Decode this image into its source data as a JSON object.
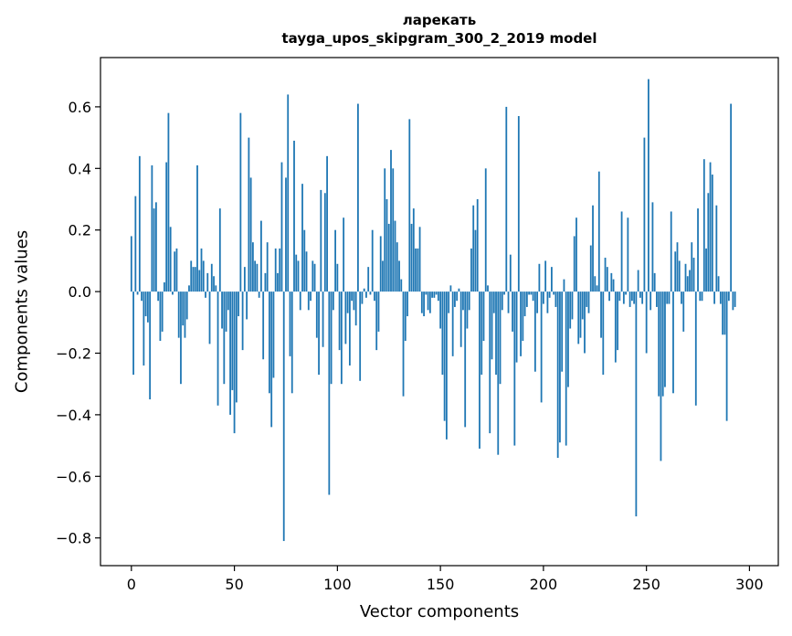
{
  "chart_data": {
    "type": "bar",
    "title_line1": "ларекать",
    "title_line2": "tayga_upos_skipgram_300_2_2019 model",
    "xlabel": "Vector components",
    "ylabel": "Components values",
    "xlim": [
      -15,
      314
    ],
    "ylim": [
      -0.89,
      0.76
    ],
    "xticks": [
      0,
      50,
      100,
      150,
      200,
      250,
      300
    ],
    "xtick_labels": [
      "0",
      "50",
      "100",
      "150",
      "200",
      "250",
      "300"
    ],
    "yticks": [
      -0.8,
      -0.6,
      -0.4,
      -0.2,
      0.0,
      0.2,
      0.4,
      0.6
    ],
    "ytick_labels": [
      "−0.8",
      "−0.6",
      "−0.4",
      "−0.2",
      "0.0",
      "0.2",
      "0.4",
      "0.6"
    ],
    "grid": false,
    "bar_color": "#1f77b4",
    "values": [
      0.18,
      -0.27,
      0.31,
      -0.01,
      0.44,
      -0.03,
      -0.24,
      -0.08,
      -0.1,
      -0.35,
      0.41,
      0.27,
      0.29,
      -0.03,
      -0.16,
      -0.13,
      0.03,
      0.42,
      0.58,
      0.21,
      -0.01,
      0.13,
      0.14,
      -0.15,
      -0.3,
      -0.11,
      -0.15,
      -0.09,
      0.02,
      0.1,
      0.08,
      0.08,
      0.41,
      0.07,
      0.14,
      0.1,
      -0.02,
      0.06,
      -0.17,
      0.09,
      0.05,
      0.02,
      -0.37,
      0.27,
      -0.12,
      -0.3,
      -0.13,
      -0.06,
      -0.4,
      -0.32,
      -0.46,
      -0.36,
      -0.08,
      0.58,
      -0.19,
      0.08,
      -0.09,
      0.5,
      0.37,
      0.16,
      0.1,
      0.09,
      -0.02,
      0.23,
      -0.22,
      0.06,
      0.16,
      -0.33,
      -0.44,
      -0.28,
      0.14,
      0.06,
      0.14,
      0.42,
      -0.81,
      0.37,
      0.64,
      -0.21,
      -0.33,
      0.49,
      0.12,
      0.1,
      -0.06,
      0.35,
      0.2,
      0.13,
      -0.06,
      -0.03,
      0.1,
      0.09,
      -0.15,
      -0.27,
      0.33,
      -0.18,
      0.32,
      0.44,
      -0.66,
      -0.3,
      -0.06,
      0.2,
      0.09,
      -0.19,
      -0.3,
      0.24,
      -0.17,
      -0.07,
      -0.24,
      -0.03,
      -0.06,
      -0.11,
      0.61,
      -0.29,
      -0.04,
      0.01,
      -0.02,
      0.08,
      -0.01,
      0.2,
      -0.03,
      -0.19,
      -0.13,
      0.18,
      0.1,
      0.4,
      0.3,
      0.22,
      0.46,
      0.4,
      0.23,
      0.16,
      0.1,
      0.04,
      -0.34,
      -0.16,
      -0.08,
      0.56,
      0.22,
      0.27,
      0.14,
      0.14,
      0.21,
      -0.07,
      -0.08,
      -0.01,
      -0.06,
      -0.07,
      -0.02,
      -0.02,
      -0.01,
      -0.03,
      -0.12,
      -0.27,
      -0.42,
      -0.48,
      -0.07,
      0.02,
      -0.21,
      -0.05,
      -0.03,
      0.01,
      -0.18,
      -0.06,
      -0.44,
      -0.12,
      -0.06,
      0.14,
      0.28,
      0.2,
      0.3,
      -0.51,
      -0.27,
      -0.16,
      0.4,
      0.02,
      -0.46,
      -0.22,
      -0.07,
      -0.27,
      -0.53,
      -0.3,
      -0.06,
      -0.01,
      0.6,
      -0.07,
      0.12,
      -0.13,
      -0.5,
      -0.23,
      0.57,
      -0.21,
      -0.16,
      -0.08,
      -0.05,
      -0.01,
      -0.01,
      -0.03,
      -0.26,
      -0.07,
      0.09,
      -0.36,
      -0.04,
      0.1,
      -0.07,
      -0.02,
      0.08,
      -0.01,
      -0.05,
      -0.54,
      -0.49,
      -0.26,
      0.04,
      -0.5,
      -0.31,
      -0.12,
      -0.09,
      0.18,
      0.24,
      -0.17,
      -0.15,
      -0.09,
      -0.2,
      -0.05,
      -0.07,
      0.15,
      0.28,
      0.05,
      0.02,
      0.39,
      -0.15,
      -0.27,
      0.11,
      0.08,
      -0.03,
      0.06,
      0.04,
      -0.23,
      -0.19,
      -0.03,
      0.26,
      -0.04,
      -0.01,
      0.24,
      -0.05,
      -0.03,
      -0.04,
      -0.73,
      0.07,
      -0.02,
      -0.04,
      0.5,
      -0.2,
      0.69,
      -0.06,
      0.29,
      0.06,
      -0.05,
      -0.34,
      -0.55,
      -0.34,
      -0.31,
      -0.04,
      -0.04,
      0.26,
      -0.33,
      0.13,
      0.16,
      0.1,
      -0.04,
      -0.13,
      0.09,
      0.05,
      0.07,
      0.16,
      0.11,
      -0.37,
      0.27,
      -0.03,
      -0.03,
      0.43,
      0.14,
      0.32,
      0.42,
      0.38,
      -0.04,
      0.28,
      0.05,
      -0.04,
      -0.14,
      -0.14,
      -0.42,
      -0.03,
      0.61,
      -0.06,
      -0.05
    ]
  }
}
